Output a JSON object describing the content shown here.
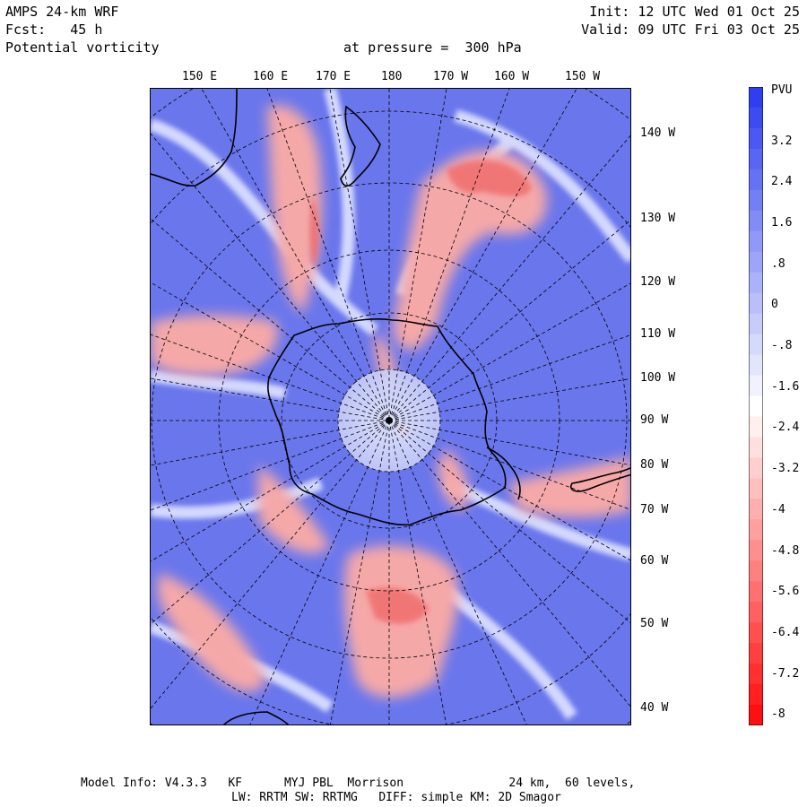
{
  "header": {
    "model": "AMPS 24-km WRF",
    "forecast": "Fcst:   45 h",
    "field": "Potential vorticity",
    "level": "at pressure =  300 hPa",
    "init": "Init: 12 UTC Wed 01 Oct 25",
    "valid": "Valid: 09 UTC Fri 03 Oct 25"
  },
  "map": {
    "projection": "polar-stereographic-south",
    "field_colors": {
      "high": "#2f3ff0",
      "mid": "#ffffff",
      "low": "#ff1010"
    },
    "lon_labels_top": [
      "150 E",
      "160 E",
      "170 E",
      "180",
      "170 W",
      "160 W",
      "150 W"
    ],
    "lon_labels_right": [
      "140 W",
      "130 W",
      "120 W",
      "110 W",
      "100 W",
      "90 W",
      "80 W",
      "70 W",
      "60 W",
      "50 W",
      "40 W"
    ]
  },
  "colorbar": {
    "unit": "PVU",
    "tick_labels": [
      "3.2",
      "2.4",
      "1.6",
      ".8",
      "0",
      "-.8",
      "-1.6",
      "-2.4",
      "-3.2",
      "-4",
      "-4.8",
      "-5.6",
      "-6.4",
      "-7.2",
      "-8"
    ]
  },
  "footer": {
    "model_info": "Model Info: V4.3.3   KF      MYJ PBL  Morrison               24 km,  60 levels,",
    "physics": "LW: RRTM SW: RRTMG   DIFF: simple KM: 2D Smagor"
  }
}
